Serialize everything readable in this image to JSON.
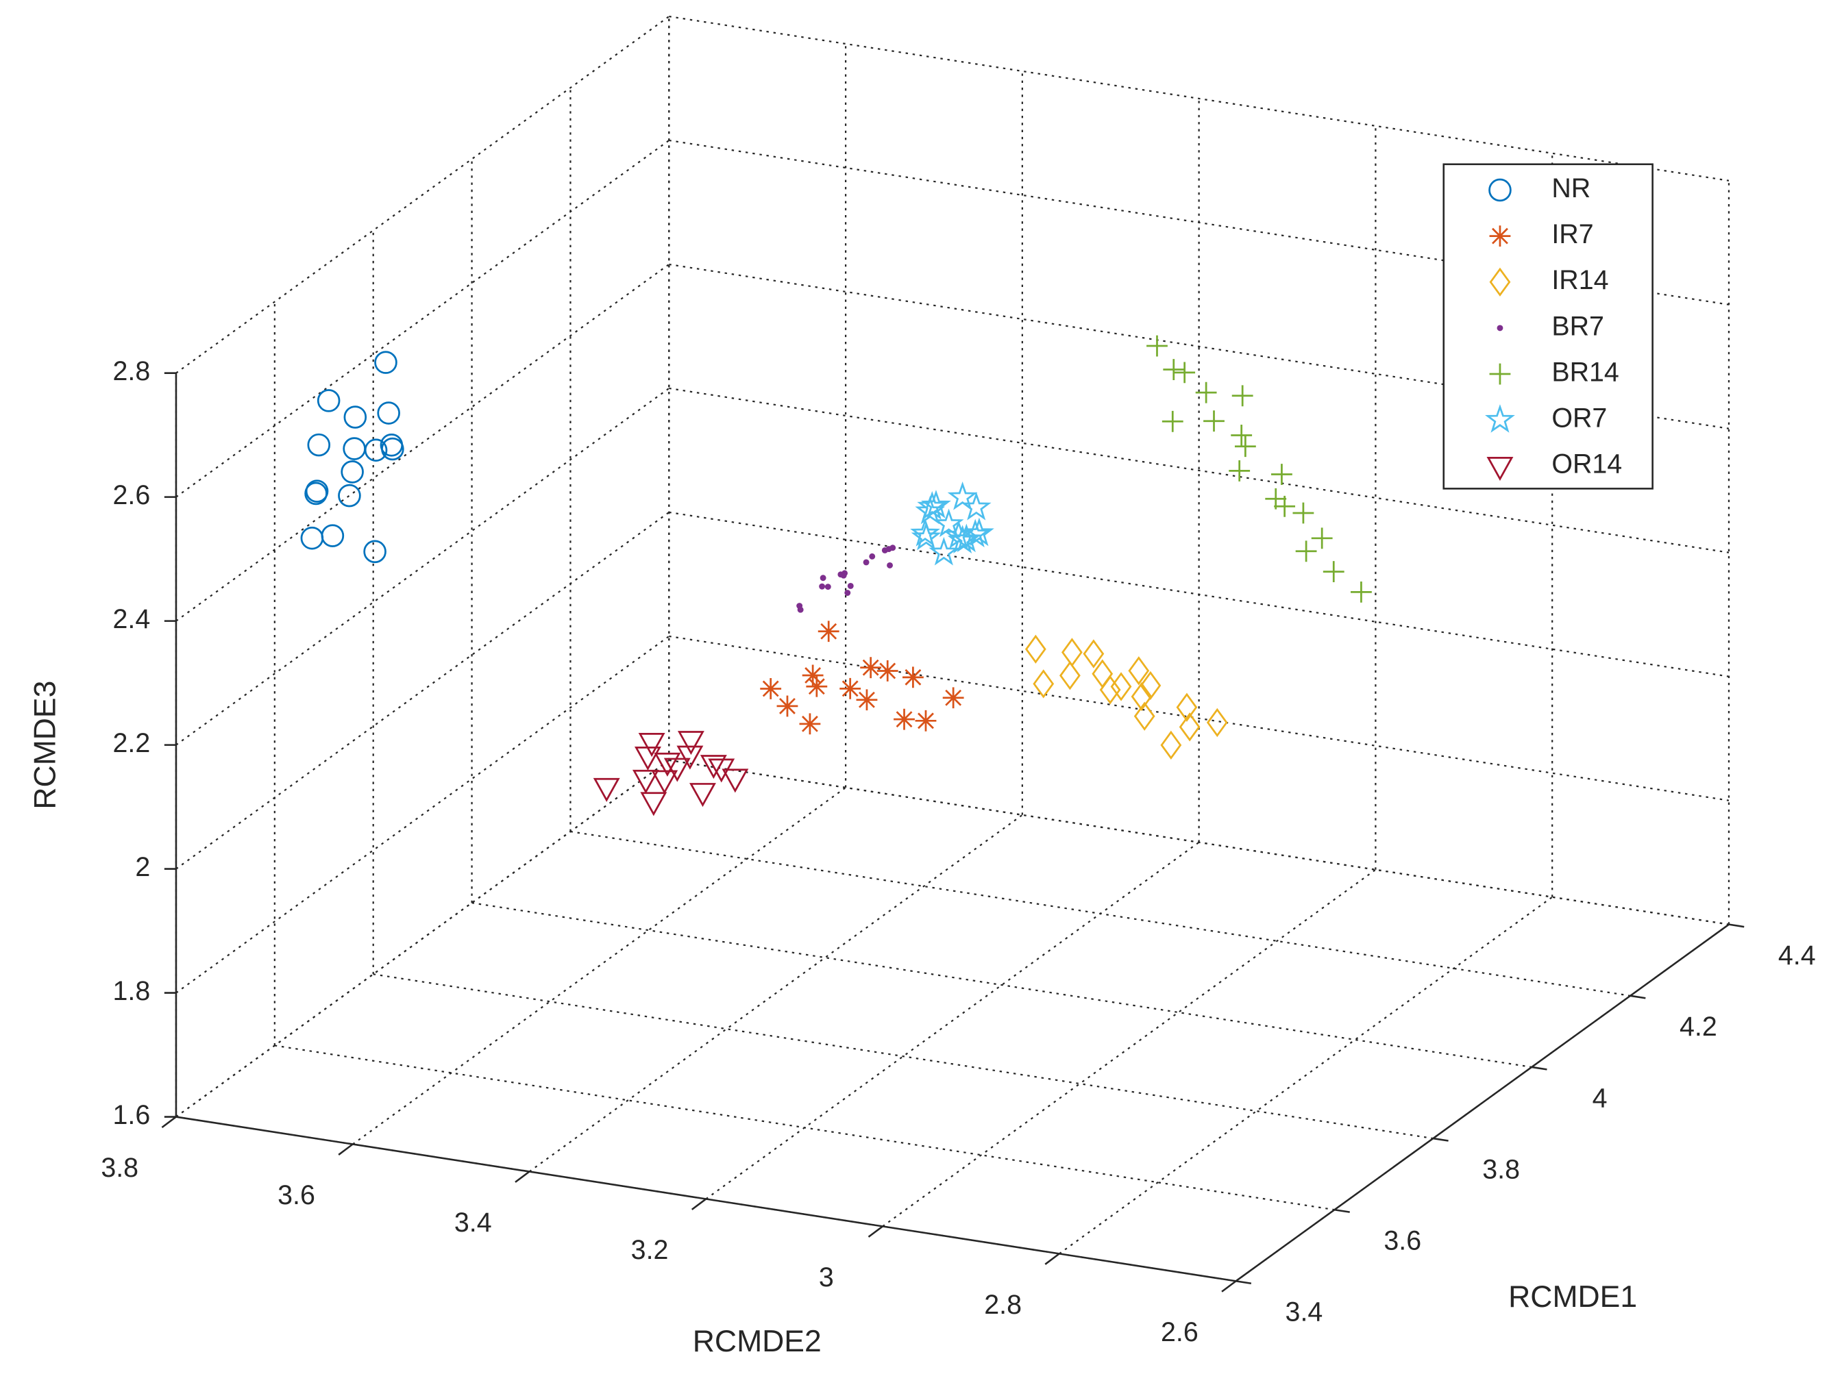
{
  "chart_data": {
    "type": "scatter3d",
    "xlabel": "RCMDE2",
    "ylabel": "RCMDE1",
    "zlabel": "RCMDE3",
    "xlim": [
      2.6,
      3.8
    ],
    "xdir": "reverse",
    "xticks": [
      2.6,
      2.8,
      3,
      3.2,
      3.4,
      3.6,
      3.8
    ],
    "ylim": [
      3.4,
      4.4
    ],
    "yticks": [
      3.4,
      3.6,
      3.8,
      4,
      4.2,
      4.4
    ],
    "zlim": [
      1.6,
      2.8
    ],
    "zticks": [
      1.6,
      1.8,
      2,
      2.2,
      2.4,
      2.6,
      2.8
    ],
    "grid": true,
    "legend_position": "northeast",
    "series": [
      {
        "name": "NR",
        "color": "#0072BD",
        "marker": "circle",
        "x": [
          3.74,
          3.72,
          3.76,
          3.75,
          3.7,
          3.78,
          3.73,
          3.77,
          3.71,
          3.74,
          3.76,
          3.69,
          3.72,
          3.75,
          3.78,
          3.73
        ],
        "y": [
          3.65,
          3.62,
          3.68,
          3.6,
          3.66,
          3.64,
          3.7,
          3.63,
          3.67,
          3.61,
          3.69,
          3.64,
          3.66,
          3.62,
          3.65,
          3.68
        ],
        "z": [
          2.51,
          2.62,
          2.45,
          2.58,
          2.55,
          2.4,
          2.66,
          2.48,
          2.6,
          2.43,
          2.52,
          2.57,
          2.38,
          2.64,
          2.47,
          2.53
        ]
      },
      {
        "name": "IR7",
        "color": "#D95319",
        "marker": "asterisk",
        "x": [
          3.26,
          3.32,
          3.2,
          3.28,
          3.18,
          3.24,
          3.3,
          3.22,
          3.35,
          3.16,
          3.27,
          3.21,
          3.29,
          3.23
        ],
        "y": [
          3.8,
          3.78,
          3.82,
          3.76,
          3.81,
          3.84,
          3.79,
          3.77,
          3.8,
          3.83,
          3.75,
          3.82,
          3.81,
          3.78
        ],
        "z": [
          2.18,
          2.15,
          2.2,
          2.22,
          2.14,
          2.19,
          2.12,
          2.24,
          2.16,
          2.17,
          2.21,
          2.13,
          2.26,
          2.18
        ]
      },
      {
        "name": "IR14",
        "color": "#EDB120",
        "marker": "diamond",
        "x": [
          3.05,
          3.02,
          3.0,
          2.98,
          2.96,
          2.95,
          2.93,
          2.91,
          2.89,
          2.87,
          2.85,
          3.03,
          2.97,
          2.92,
          2.88,
          2.99
        ],
        "y": [
          3.8,
          3.82,
          3.78,
          3.81,
          3.79,
          3.83,
          3.8,
          3.77,
          3.82,
          3.79,
          3.81,
          3.78,
          3.83,
          3.8,
          3.77,
          3.81
        ],
        "z": [
          2.29,
          2.28,
          2.27,
          2.26,
          2.25,
          2.26,
          2.24,
          2.23,
          2.22,
          2.21,
          2.21,
          2.25,
          2.23,
          2.26,
          2.19,
          2.29
        ]
      },
      {
        "name": "BR7",
        "color": "#7E2F8E",
        "marker": "dot",
        "x": [
          3.4,
          3.39,
          3.38,
          3.37,
          3.36,
          3.35,
          3.34,
          3.33,
          3.32,
          3.31,
          3.3,
          3.29,
          3.36,
          3.33,
          3.38,
          3.31
        ],
        "y": [
          3.95,
          3.93,
          3.97,
          3.94,
          3.96,
          3.95,
          3.93,
          3.97,
          3.94,
          3.96,
          3.95,
          3.94,
          3.98,
          3.92,
          3.96,
          3.97
        ],
        "z": [
          2.19,
          2.21,
          2.22,
          2.24,
          2.25,
          2.26,
          2.27,
          2.28,
          2.29,
          2.3,
          2.31,
          2.32,
          2.22,
          2.25,
          2.24,
          2.27
        ]
      },
      {
        "name": "BR14",
        "color": "#77AC30",
        "marker": "plus",
        "x": [
          3.08,
          3.06,
          3.05,
          3.03,
          3.01,
          3.0,
          2.98,
          2.97,
          2.95,
          2.93,
          2.92,
          2.9,
          2.88,
          2.86,
          3.04,
          2.99,
          2.94,
          2.91
        ],
        "y": [
          4.1,
          4.12,
          4.08,
          4.11,
          4.09,
          4.13,
          4.1,
          4.07,
          4.12,
          4.09,
          4.11,
          4.08,
          4.1,
          4.12,
          4.06,
          4.11,
          4.09,
          4.13
        ],
        "z": [
          2.6,
          2.55,
          2.58,
          2.53,
          2.5,
          2.52,
          2.46,
          2.44,
          2.41,
          2.38,
          2.36,
          2.32,
          2.28,
          2.24,
          2.51,
          2.47,
          2.39,
          2.31
        ]
      },
      {
        "name": "OR7",
        "color": "#4DBEEE",
        "marker": "pentagram",
        "x": [
          3.26,
          3.24,
          3.28,
          3.25,
          3.27,
          3.23,
          3.29,
          3.26,
          3.25,
          3.27,
          3.24,
          3.28,
          3.22,
          3.26
        ],
        "y": [
          4.0,
          4.02,
          3.99,
          4.01,
          3.98,
          4.0,
          4.02,
          3.99,
          4.01,
          3.97,
          4.0,
          4.01,
          3.99,
          4.02
        ],
        "z": [
          2.33,
          2.35,
          2.31,
          2.3,
          2.36,
          2.32,
          2.34,
          2.29,
          2.37,
          2.33,
          2.31,
          2.35,
          2.33,
          2.3
        ]
      },
      {
        "name": "OR14",
        "color": "#A2142F",
        "marker": "triangle-down",
        "x": [
          3.4,
          3.44,
          3.36,
          3.42,
          3.38,
          3.45,
          3.35,
          3.41,
          3.39,
          3.43,
          3.37,
          3.48,
          3.4,
          3.34
        ],
        "y": [
          3.7,
          3.72,
          3.68,
          3.71,
          3.69,
          3.73,
          3.7,
          3.67,
          3.71,
          3.69,
          3.72,
          3.7,
          3.68,
          3.71
        ],
        "z": [
          2.08,
          2.1,
          2.06,
          2.05,
          2.11,
          2.07,
          2.09,
          2.04,
          2.12,
          2.06,
          2.08,
          2.03,
          2.1,
          2.07
        ]
      }
    ]
  }
}
